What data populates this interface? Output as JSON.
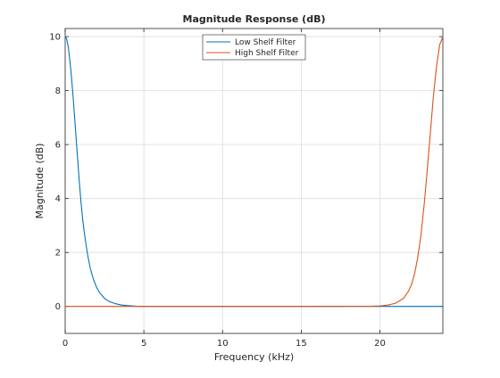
{
  "chart_data": {
    "type": "line",
    "title": "Magnitude Response (dB)",
    "xlabel": "Frequency (kHz)",
    "ylabel": "Magnitude (dB)",
    "xlim": [
      0,
      24
    ],
    "ylim": [
      -1,
      10.3
    ],
    "xticks": [
      0,
      5,
      10,
      15,
      20
    ],
    "yticks": [
      0,
      2,
      4,
      6,
      8,
      10
    ],
    "grid": true,
    "legend_position": "top-center",
    "series": [
      {
        "name": "Low Shelf Filter",
        "color": "#0072bd",
        "x": [
          0,
          0.1,
          0.2,
          0.3,
          0.4,
          0.5,
          0.6,
          0.7,
          0.8,
          0.9,
          1.0,
          1.1,
          1.2,
          1.4,
          1.6,
          1.8,
          2.0,
          2.2,
          2.5,
          2.8,
          3.2,
          3.6,
          4.0,
          4.5,
          5,
          10,
          15,
          20,
          24
        ],
        "y": [
          10,
          9.9,
          9.6,
          9.1,
          8.5,
          7.8,
          7.0,
          6.2,
          5.4,
          4.6,
          3.9,
          3.3,
          2.8,
          2.0,
          1.4,
          1.0,
          0.7,
          0.5,
          0.3,
          0.18,
          0.1,
          0.05,
          0.03,
          0.01,
          0,
          0,
          0,
          0,
          0
        ]
      },
      {
        "name": "High Shelf Filter",
        "color": "#d95319",
        "x": [
          0,
          5,
          10,
          15,
          19.5,
          20.0,
          20.5,
          21.0,
          21.5,
          21.8,
          22.0,
          22.2,
          22.4,
          22.6,
          22.8,
          23.0,
          23.2,
          23.4,
          23.6,
          23.8,
          24.0
        ],
        "y": [
          0,
          0,
          0,
          0,
          0.01,
          0.02,
          0.05,
          0.12,
          0.3,
          0.55,
          0.8,
          1.2,
          1.8,
          2.6,
          3.7,
          5.0,
          6.4,
          7.8,
          8.9,
          9.7,
          10
        ]
      }
    ]
  }
}
